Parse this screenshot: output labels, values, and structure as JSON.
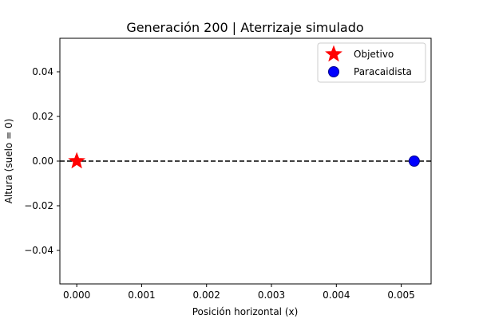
{
  "chart_data": {
    "type": "scatter",
    "title": "Generación 200 | Aterrizaje simulado",
    "xlabel": "Posición horizontal (x)",
    "ylabel": "Altura (suelo = 0)",
    "xlim": [
      -0.00026,
      0.00546
    ],
    "ylim": [
      -0.055,
      0.055
    ],
    "x_ticks": [
      {
        "value": 0.0,
        "label": "0.000"
      },
      {
        "value": 0.001,
        "label": "0.001"
      },
      {
        "value": 0.002,
        "label": "0.002"
      },
      {
        "value": 0.003,
        "label": "0.003"
      },
      {
        "value": 0.004,
        "label": "0.004"
      },
      {
        "value": 0.005,
        "label": "0.005"
      }
    ],
    "y_ticks": [
      {
        "value": 0.04,
        "label": "0.04"
      },
      {
        "value": 0.02,
        "label": "0.02"
      },
      {
        "value": 0.0,
        "label": "0.00"
      },
      {
        "value": -0.02,
        "label": "−0.02"
      },
      {
        "value": -0.04,
        "label": "−0.04"
      }
    ],
    "ground_line": {
      "y": 0.0,
      "style": "dashed",
      "color": "#000000"
    },
    "series": [
      {
        "name": "Objetivo",
        "marker": "star",
        "color": "#ff0000",
        "x": [
          0.0
        ],
        "y": [
          0.0
        ]
      },
      {
        "name": "Paracaidista",
        "marker": "circle",
        "color": "#0000ff",
        "x": [
          0.0052
        ],
        "y": [
          0.0
        ]
      }
    ],
    "legend_position": "top-right",
    "grid": false
  }
}
